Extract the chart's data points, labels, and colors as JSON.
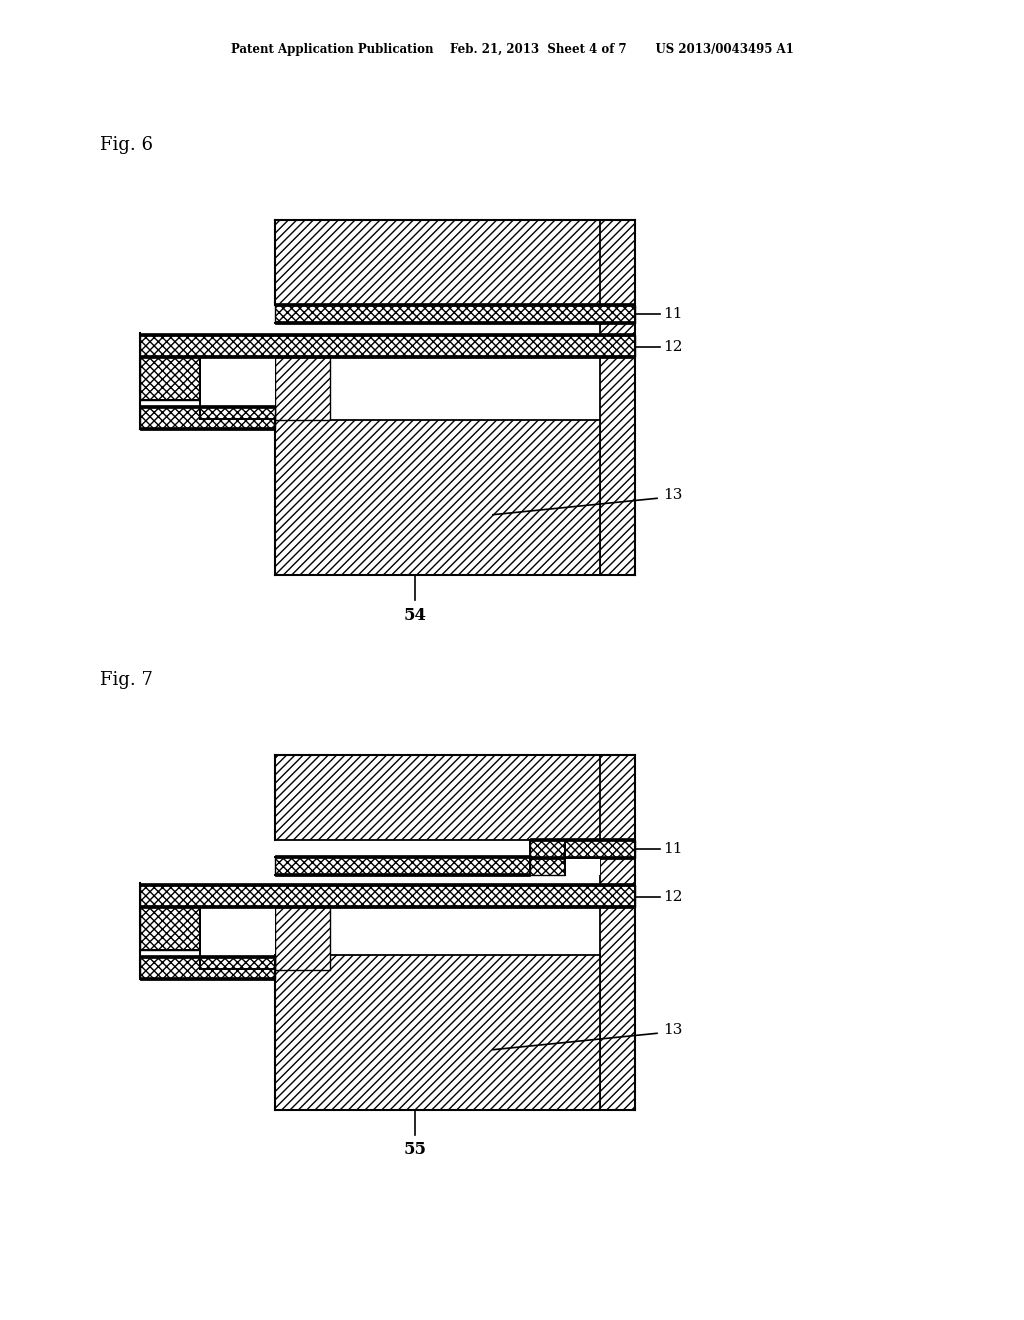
{
  "header": "Patent Application Publication    Feb. 21, 2013  Sheet 4 of 7       US 2013/0043495 A1",
  "fig6_label": "Fig. 6",
  "fig7_label": "Fig. 7",
  "label_11": "11",
  "label_12": "12",
  "label_13": "13",
  "label_54": "54",
  "label_55": "55",
  "bg": "#ffffff",
  "black": "#000000"
}
